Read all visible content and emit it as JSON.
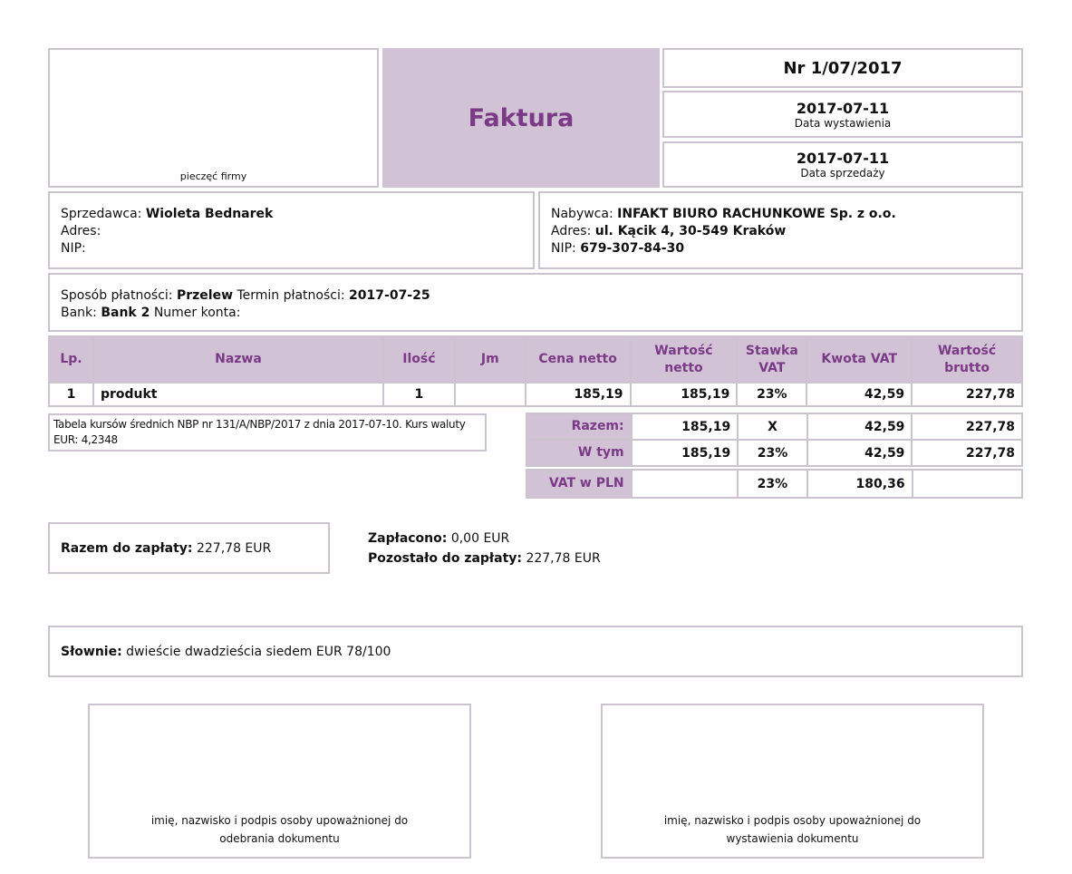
{
  "header": {
    "stamp_label": "pieczęć firmy",
    "title": "Faktura",
    "number": "Nr 1/07/2017",
    "issue_date": "2017-07-11",
    "issue_date_label": "Data wystawienia",
    "sale_date": "2017-07-11",
    "sale_date_label": "Data sprzedaży"
  },
  "seller": {
    "label": "Sprzedawca:",
    "name": "Wioleta Bednarek",
    "address_label": "Adres:",
    "nip_label": "NIP:"
  },
  "buyer": {
    "label": "Nabywca:",
    "name": "INFAKT BIURO RACHUNKOWE Sp. z o.o.",
    "address_label": "Adres:",
    "address": "ul. Kącik 4, 30-549 Kraków",
    "nip_label": "NIP:",
    "nip": "679-307-84-30"
  },
  "payment": {
    "method_label": "Sposób płatności:",
    "method": "Przelew",
    "due_label": "Termin płatności:",
    "due": "2017-07-25",
    "bank_label": "Bank:",
    "bank": "Bank 2",
    "account_label": "Numer konta:"
  },
  "table": {
    "headers": [
      "Lp.",
      "Nazwa",
      "Ilość",
      "Jm",
      "Cena netto",
      "Wartość netto",
      "Stawka VAT",
      "Kwota VAT",
      "Wartość brutto"
    ],
    "rows": [
      {
        "lp": "1",
        "name": "produkt",
        "qty": "1",
        "unit": "",
        "price": "185,19",
        "net": "185,19",
        "rate": "23%",
        "vat": "42,59",
        "gross": "227,78"
      }
    ]
  },
  "exchange_note": "Tabela kursów średnich NBP nr 131/A/NBP/2017 z dnia 2017-07-10. Kurs waluty EUR: 4,2348",
  "summary": {
    "total_label": "Razem:",
    "total": {
      "net": "185,19",
      "rate": "X",
      "vat": "42,59",
      "gross": "227,78"
    },
    "incl_label": "W tym",
    "incl": {
      "net": "185,19",
      "rate": "23%",
      "vat": "42,59",
      "gross": "227,78"
    },
    "pln_label": "VAT w PLN",
    "pln": {
      "net": "",
      "rate": "23%",
      "vat": "180,36",
      "gross": ""
    }
  },
  "totals": {
    "due_label": "Razem do zapłaty:",
    "due": "227,78 EUR",
    "paid_label": "Zapłacono:",
    "paid": "0,00 EUR",
    "remaining_label": "Pozostało do zapłaty:",
    "remaining": "227,78 EUR"
  },
  "words": {
    "label": "Słownie:",
    "value": "dwieście dwadzieścia siedem EUR 78/100"
  },
  "signatures": {
    "receiver": "imię, nazwisko i podpis osoby upoważnionej do odebrania dokumentu",
    "issuer": "imię, nazwisko i podpis osoby upoważnionej do wystawienia dokumentu"
  }
}
